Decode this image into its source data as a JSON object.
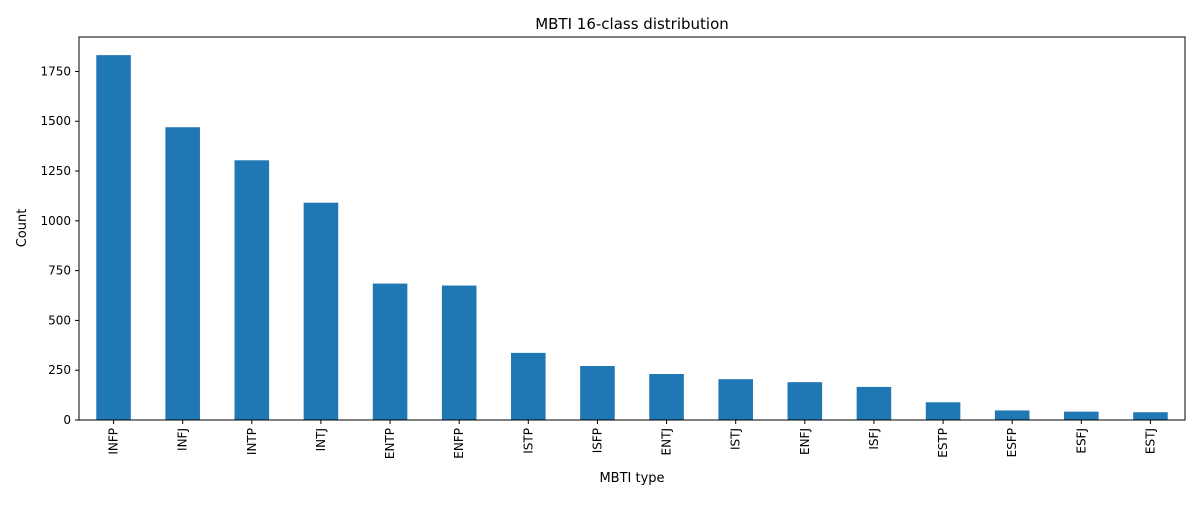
{
  "chart_data": {
    "type": "bar",
    "title": "MBTI 16-class distribution",
    "xlabel": "MBTI type",
    "ylabel": "Count",
    "categories": [
      "INFP",
      "INFJ",
      "INTP",
      "INTJ",
      "ENTP",
      "ENFP",
      "ISTP",
      "ISFP",
      "ENTJ",
      "ISTJ",
      "ENFJ",
      "ISFJ",
      "ESTP",
      "ESFP",
      "ESFJ",
      "ESTJ"
    ],
    "values": [
      1832,
      1470,
      1304,
      1091,
      685,
      675,
      337,
      271,
      231,
      205,
      190,
      166,
      89,
      48,
      42,
      39
    ],
    "yticks": [
      0,
      250,
      500,
      750,
      1000,
      1250,
      1500,
      1750
    ],
    "ylim": [
      0,
      1923
    ],
    "bar_color": "#1f77b4",
    "grid": false,
    "legend": "none"
  }
}
